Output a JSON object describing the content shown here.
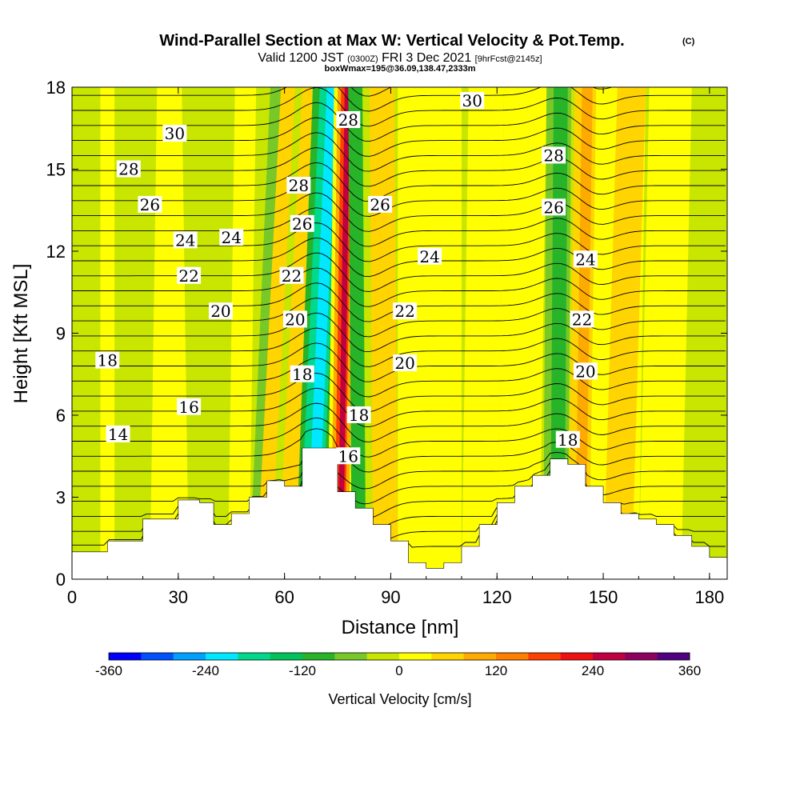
{
  "chart_data": {
    "type": "heatmap",
    "title_main": "Wind-Parallel Section at Max W: Vertical Velocity & Pot.Temp.",
    "title_mark": "(C)",
    "subtitle_a": "Valid 1200 JST",
    "subtitle_b": "(0300Z)",
    "subtitle_c": "FRI 3 Dec 2021",
    "subtitle_d": "[9hrFcst@2145z]",
    "subtitle_e": "boxWmax=195@36.09,138.47,2333m",
    "xlabel": "Distance [nm]",
    "ylabel": "Height [Kft MSL]",
    "xlim": [
      0,
      185
    ],
    "ylim": [
      0,
      18
    ],
    "x_ticks": [
      "0",
      "30",
      "60",
      "90",
      "120",
      "150",
      "180"
    ],
    "y_ticks": [
      "0",
      "3",
      "6",
      "9",
      "12",
      "15",
      "18"
    ],
    "colorbar": {
      "label": "Vertical Velocity [cm/s]",
      "range": [
        -360,
        360
      ],
      "ticks": [
        "-360",
        "-240",
        "-120",
        "0",
        "120",
        "240",
        "360"
      ],
      "colors": [
        "#0000ff",
        "#0050ff",
        "#00a0ff",
        "#00e8ff",
        "#00d88c",
        "#00c45a",
        "#28b428",
        "#78c828",
        "#c8e600",
        "#ffff00",
        "#ffd400",
        "#ffaa00",
        "#ff8000",
        "#ff4000",
        "#f01010",
        "#c00040",
        "#900060",
        "#500080"
      ]
    },
    "updrafts_nm": [
      74,
      145
    ],
    "downdrafts_nm": [
      65,
      139
    ],
    "terrain": [
      [
        0,
        1.0
      ],
      [
        10,
        1.4
      ],
      [
        20,
        2.2
      ],
      [
        30,
        2.9
      ],
      [
        36,
        2.8
      ],
      [
        40,
        2.0
      ],
      [
        45,
        2.4
      ],
      [
        50,
        3.0
      ],
      [
        55,
        3.6
      ],
      [
        60,
        3.4
      ],
      [
        65,
        4.8
      ],
      [
        70,
        4.8
      ],
      [
        75,
        3.2
      ],
      [
        80,
        2.6
      ],
      [
        85,
        2.0
      ],
      [
        90,
        1.4
      ],
      [
        95,
        0.6
      ],
      [
        100,
        0.4
      ],
      [
        105,
        0.6
      ],
      [
        110,
        1.2
      ],
      [
        115,
        2.0
      ],
      [
        120,
        2.8
      ],
      [
        125,
        3.4
      ],
      [
        130,
        3.8
      ],
      [
        135,
        4.4
      ],
      [
        140,
        4.2
      ],
      [
        145,
        3.4
      ],
      [
        150,
        2.8
      ],
      [
        155,
        2.4
      ],
      [
        160,
        2.2
      ],
      [
        165,
        2.0
      ],
      [
        170,
        1.6
      ],
      [
        175,
        1.2
      ],
      [
        180,
        0.8
      ],
      [
        185,
        0.6
      ]
    ],
    "contour_labels": [
      {
        "text": "30",
        "x": 29,
        "y": 16.3
      },
      {
        "text": "30",
        "x": 113,
        "y": 17.5
      },
      {
        "text": "28",
        "x": 16,
        "y": 15.0
      },
      {
        "text": "28",
        "x": 78,
        "y": 16.8
      },
      {
        "text": "28",
        "x": 64,
        "y": 14.4
      },
      {
        "text": "28",
        "x": 136,
        "y": 15.5
      },
      {
        "text": "26",
        "x": 22,
        "y": 13.7
      },
      {
        "text": "26",
        "x": 65,
        "y": 13.0
      },
      {
        "text": "26",
        "x": 87,
        "y": 13.7
      },
      {
        "text": "26",
        "x": 136,
        "y": 13.6
      },
      {
        "text": "24",
        "x": 32,
        "y": 12.4
      },
      {
        "text": "24",
        "x": 45,
        "y": 12.5
      },
      {
        "text": "24",
        "x": 101,
        "y": 11.8
      },
      {
        "text": "24",
        "x": 145,
        "y": 11.7
      },
      {
        "text": "22",
        "x": 33,
        "y": 11.1
      },
      {
        "text": "22",
        "x": 62,
        "y": 11.1
      },
      {
        "text": "22",
        "x": 94,
        "y": 9.8
      },
      {
        "text": "22",
        "x": 144,
        "y": 9.5
      },
      {
        "text": "20",
        "x": 42,
        "y": 9.8
      },
      {
        "text": "20",
        "x": 63,
        "y": 9.5
      },
      {
        "text": "20",
        "x": 94,
        "y": 7.9
      },
      {
        "text": "20",
        "x": 145,
        "y": 7.6
      },
      {
        "text": "18",
        "x": 10,
        "y": 8.0
      },
      {
        "text": "18",
        "x": 65,
        "y": 7.5
      },
      {
        "text": "18",
        "x": 81,
        "y": 6.0
      },
      {
        "text": "18",
        "x": 140,
        "y": 5.1
      },
      {
        "text": "16",
        "x": 33,
        "y": 6.3
      },
      {
        "text": "16",
        "x": 78,
        "y": 4.5
      },
      {
        "text": "14",
        "x": 13,
        "y": 5.3
      }
    ]
  }
}
